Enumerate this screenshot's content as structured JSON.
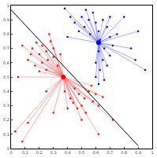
{
  "chart_data": {
    "type": "scatter",
    "xlim": [
      0,
      1
    ],
    "ylim": [
      0,
      1
    ],
    "xticks": [
      0,
      0.1,
      0.2,
      0.3,
      0.4,
      0.5,
      0.6,
      0.7,
      0.8,
      0.9,
      1
    ],
    "yticks": [
      0,
      0.1,
      0.2,
      0.3,
      0.4,
      0.5,
      0.6,
      0.7,
      0.8,
      0.9,
      1
    ],
    "grid": false,
    "series": [
      {
        "color": "#ff0000",
        "marker": "circle",
        "centroid": [
          0.37,
          0.5
        ],
        "x": [
          0.12,
          0.15,
          0.18,
          0.2,
          0.22,
          0.25,
          0.28,
          0.3,
          0.17,
          0.22,
          0.26,
          0.3,
          0.33,
          0.2,
          0.25,
          0.14,
          0.27,
          0.08,
          0.35,
          0.05,
          0.38,
          0.42,
          0.45,
          0.48,
          0.5,
          0.52,
          0.55,
          0.58,
          0.6,
          0.47,
          0.53,
          0.62,
          0.44,
          0.57,
          0.4,
          0.65,
          0.5,
          0.03,
          0.08,
          0.12,
          0.3,
          0.62,
          0.72,
          0.25
        ],
        "y": [
          0.62,
          0.7,
          0.74,
          0.66,
          0.72,
          0.68,
          0.75,
          0.7,
          0.58,
          0.6,
          0.62,
          0.64,
          0.58,
          0.54,
          0.55,
          0.66,
          0.8,
          0.72,
          0.66,
          0.5,
          0.4,
          0.35,
          0.42,
          0.38,
          0.3,
          0.35,
          0.4,
          0.33,
          0.38,
          0.28,
          0.25,
          0.3,
          0.32,
          0.44,
          0.28,
          0.36,
          0.2,
          0.12,
          0.05,
          0.18,
          0.25,
          0.1,
          0.2,
          0.4
        ]
      },
      {
        "color": "#0000ff",
        "marker": "circle",
        "centroid": [
          0.62,
          0.74
        ],
        "x": [
          0.45,
          0.5,
          0.52,
          0.55,
          0.58,
          0.6,
          0.62,
          0.65,
          0.68,
          0.7,
          0.48,
          0.56,
          0.63,
          0.66,
          0.7,
          0.72,
          0.75,
          0.62,
          0.65,
          0.6,
          0.63,
          0.68,
          0.6,
          0.66,
          0.62,
          0.7,
          0.53,
          0.42,
          0.95,
          0.88,
          0.85,
          0.9,
          0.8,
          0.4,
          0.38
        ],
        "y": [
          0.88,
          0.92,
          0.85,
          0.9,
          0.95,
          0.88,
          0.82,
          0.9,
          0.85,
          0.92,
          0.82,
          0.8,
          0.76,
          0.7,
          0.78,
          0.72,
          0.8,
          0.68,
          0.62,
          0.6,
          0.55,
          0.58,
          0.5,
          0.48,
          0.45,
          0.65,
          0.97,
          0.92,
          0.55,
          0.62,
          0.7,
          0.82,
          0.92,
          0.78,
          0.98
        ]
      }
    ],
    "boundary": {
      "color": "#000000",
      "x": [
        0,
        0.9
      ],
      "y": [
        0.97,
        0.02
      ]
    }
  }
}
